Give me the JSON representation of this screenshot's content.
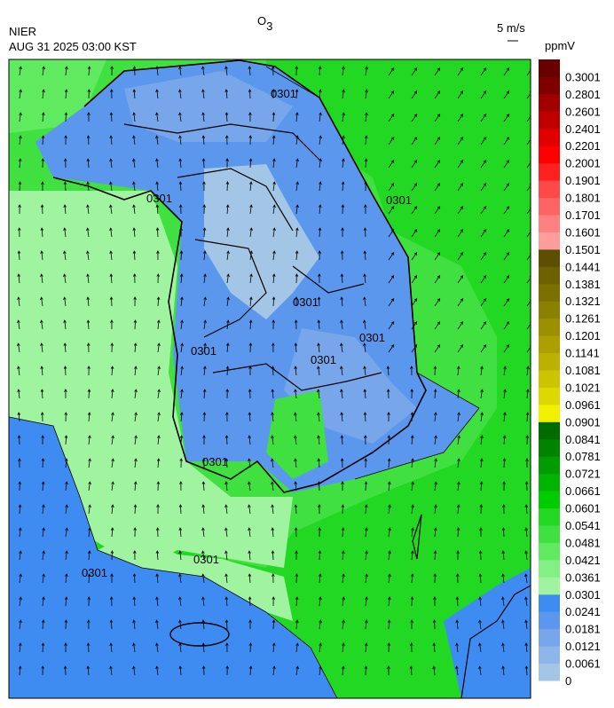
{
  "header": {
    "title": {
      "main": "O",
      "subscript": "3"
    },
    "agency": "NIER",
    "timestamp": "AUG 31 2025 03:00 KST",
    "vector_scale": "5 m/s",
    "unit": "ppmV"
  },
  "contour_labels": [
    "0301",
    "0301",
    "0301",
    "0301",
    "0301",
    "0301",
    "0301",
    "0301",
    "0301",
    "0301"
  ],
  "colorbar": [
    {
      "label": "0",
      "color": "#a4c6e6"
    },
    {
      "label": "0.0061",
      "color": "#8fb6e8"
    },
    {
      "label": "0.0121",
      "color": "#78a6ea"
    },
    {
      "label": "0.0181",
      "color": "#5c97ee"
    },
    {
      "label": "0.0241",
      "color": "#3e8cf2"
    },
    {
      "label": "0.0301",
      "color": "#a0f4a0"
    },
    {
      "label": "0.0361",
      "color": "#82f082"
    },
    {
      "label": "0.0421",
      "color": "#60ea60"
    },
    {
      "label": "0.0481",
      "color": "#40e040"
    },
    {
      "label": "0.0541",
      "color": "#22d822"
    },
    {
      "label": "0.0601",
      "color": "#00cc00"
    },
    {
      "label": "0.0661",
      "color": "#00b400"
    },
    {
      "label": "0.0721",
      "color": "#009c00"
    },
    {
      "label": "0.0781",
      "color": "#008400"
    },
    {
      "label": "0.0841",
      "color": "#006c00"
    },
    {
      "label": "0.0901",
      "color": "#f0f000"
    },
    {
      "label": "0.0961",
      "color": "#dcd800"
    },
    {
      "label": "0.1021",
      "color": "#ccc400"
    },
    {
      "label": "0.1081",
      "color": "#bcb000"
    },
    {
      "label": "0.1141",
      "color": "#aca000"
    },
    {
      "label": "0.1201",
      "color": "#9c9000"
    },
    {
      "label": "0.1261",
      "color": "#8c8000"
    },
    {
      "label": "0.1321",
      "color": "#7c7000"
    },
    {
      "label": "0.1381",
      "color": "#6c6000"
    },
    {
      "label": "0.1441",
      "color": "#5c5000"
    },
    {
      "label": "0.1501",
      "color": "#ff9c9c"
    },
    {
      "label": "0.1601",
      "color": "#ff8080"
    },
    {
      "label": "0.1701",
      "color": "#ff6464"
    },
    {
      "label": "0.1801",
      "color": "#ff4848"
    },
    {
      "label": "0.1901",
      "color": "#ff2020"
    },
    {
      "label": "0.2001",
      "color": "#ff0000"
    },
    {
      "label": "0.2201",
      "color": "#e00000"
    },
    {
      "label": "0.2401",
      "color": "#c00000"
    },
    {
      "label": "0.2601",
      "color": "#a00000"
    },
    {
      "label": "0.2801",
      "color": "#800000"
    },
    {
      "label": "0.3001",
      "color": "#680000"
    }
  ]
}
